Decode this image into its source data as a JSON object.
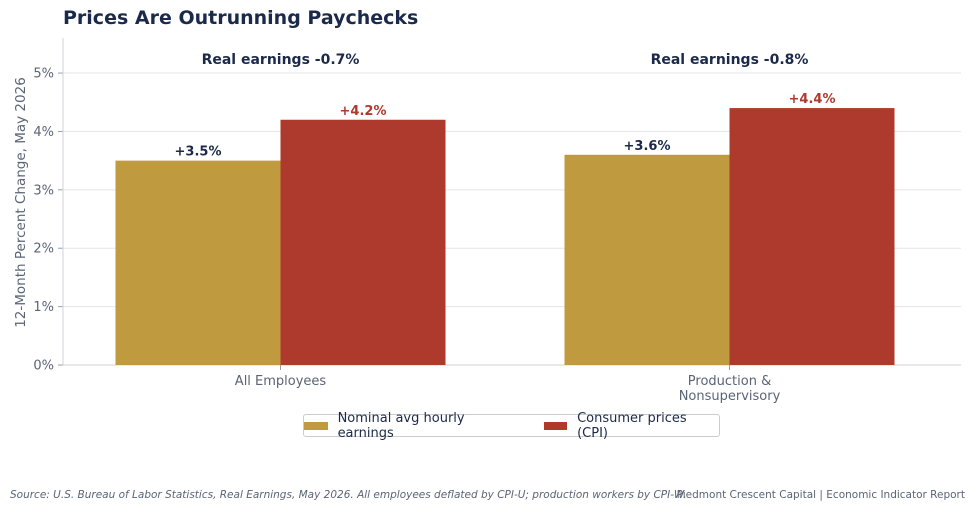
{
  "chart_data": {
    "type": "bar",
    "title": "Prices Are Outrunning Paychecks",
    "ylabel": "12-Month Percent Change, May 2026",
    "xlabel": "",
    "ylim": [
      0,
      5.6
    ],
    "yticks": [
      0,
      1,
      2,
      3,
      4,
      5
    ],
    "ytick_labels": [
      "0%",
      "1%",
      "2%",
      "3%",
      "4%",
      "5%"
    ],
    "grid": "horizontal",
    "categories": [
      "All Employees",
      "Production & Nonsupervisory"
    ],
    "category_labels": [
      [
        "All Employees"
      ],
      [
        "Production &",
        "Nonsupervisory"
      ]
    ],
    "series": [
      {
        "name": "Nominal avg hourly earnings",
        "values": [
          3.5,
          3.6
        ],
        "labels": [
          "+3.5%",
          "+3.6%"
        ],
        "color": "#c09a3e",
        "label_color": "#1b2a4a"
      },
      {
        "name": "Consumer prices (CPI)",
        "values": [
          4.2,
          4.4
        ],
        "labels": [
          "+4.2%",
          "+4.4%"
        ],
        "color": "#ae3a2e",
        "label_color": "#ae3a2e"
      }
    ],
    "annotations": [
      "Real earnings -0.7%",
      "Real earnings -0.8%"
    ],
    "legend_position": "bottom-center"
  },
  "footer": {
    "source": "Source: U.S. Bureau of Labor Statistics, Real Earnings, May 2026. All employees deflated by CPI-U; production workers by CPI-W.",
    "brand": "Piedmont Crescent Capital | Economic Indicator Report"
  }
}
